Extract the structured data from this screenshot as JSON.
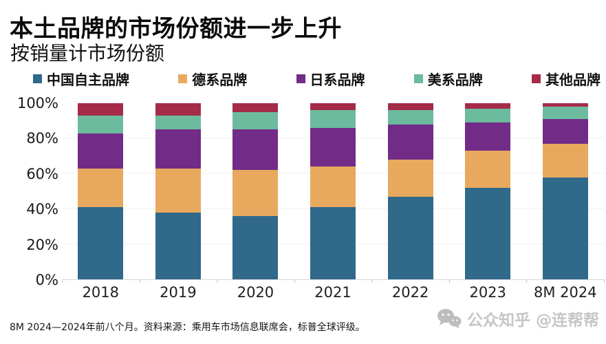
{
  "title": "本土品牌的市场份额进一步上升",
  "subtitle": "按销量计市场份额",
  "legend": [
    {
      "label": "中国自主品牌",
      "color": "#30698a"
    },
    {
      "label": "德系品牌",
      "color": "#e8a95e"
    },
    {
      "label": "日系品牌",
      "color": "#722b87"
    },
    {
      "label": "美系品牌",
      "color": "#6cbb9e"
    },
    {
      "label": "其他品牌",
      "color": "#a52c48"
    }
  ],
  "chart_data": {
    "type": "bar",
    "stacked": true,
    "title": "本土品牌的市场份额进一步上升",
    "subtitle": "按销量计市场份额",
    "categories": [
      "2018",
      "2019",
      "2020",
      "2021",
      "2022",
      "2023",
      "8M 2024"
    ],
    "series": [
      {
        "id": "cn",
        "name": "中国自主品牌",
        "color": "#30698a",
        "values": [
          41,
          38,
          36,
          41,
          47,
          52,
          58
        ]
      },
      {
        "id": "de",
        "name": "德系品牌",
        "color": "#e8a95e",
        "values": [
          22,
          25,
          26,
          23,
          21,
          21,
          19
        ]
      },
      {
        "id": "jp",
        "name": "日系品牌",
        "color": "#722b87",
        "values": [
          20,
          22,
          23,
          22,
          20,
          16,
          14
        ]
      },
      {
        "id": "us",
        "name": "美系品牌",
        "color": "#6cbb9e",
        "values": [
          10,
          8,
          10,
          10,
          8,
          8,
          7
        ]
      },
      {
        "id": "other",
        "name": "其他品牌",
        "color": "#a52c48",
        "values": [
          7,
          7,
          5,
          4,
          4,
          3,
          2
        ]
      }
    ],
    "unit": "%",
    "ylim": [
      0,
      100
    ],
    "y_ticks": [
      "0%",
      "20%",
      "40%",
      "60%",
      "80%",
      "100%"
    ],
    "grid": "faint-horizontal",
    "legend_position": "top"
  },
  "footer": {
    "note": "8M 2024—2024年前八个月。资料来源：乘用车市场信息联席会，标普全球评级。"
  },
  "watermark": {
    "icon": "wechat-icon",
    "text": "公众知乎 @连帮帮"
  }
}
